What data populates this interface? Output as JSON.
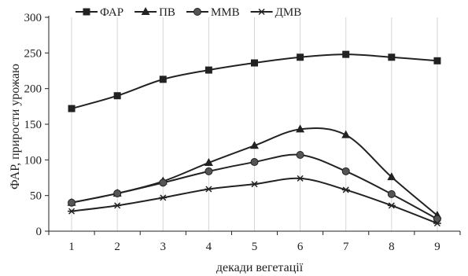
{
  "chart_data": {
    "type": "line",
    "title": "",
    "xlabel": "декади вегетації",
    "ylabel": "ФАР, прирости урожаю",
    "x": [
      1,
      2,
      3,
      4,
      5,
      6,
      7,
      8,
      9
    ],
    "x_tick_labels": [
      "1",
      "2",
      "3",
      "4",
      "5",
      "6",
      "7",
      "8",
      "9"
    ],
    "y_tick_labels": [
      "0",
      "50",
      "100",
      "150",
      "200",
      "250",
      "300"
    ],
    "ylim": [
      0,
      300
    ],
    "grid": "vertical gridlines at each x category",
    "legend_position": "top-left",
    "series": [
      {
        "name": "ФАР",
        "marker": "square",
        "values": [
          172,
          190,
          213,
          226,
          236,
          244,
          248,
          244,
          239
        ]
      },
      {
        "name": "ПВ",
        "marker": "triangle",
        "values": [
          40,
          53,
          70,
          96,
          120,
          143,
          135,
          76,
          22
        ]
      },
      {
        "name": "ММВ",
        "marker": "circle",
        "values": [
          40,
          53,
          68,
          84,
          97,
          107,
          84,
          52,
          17
        ]
      },
      {
        "name": "ДМВ",
        "marker": "asterisk",
        "values": [
          28,
          36,
          47,
          59,
          66,
          74,
          58,
          36,
          11
        ]
      }
    ],
    "colors": {
      "series": "#222222",
      "grid": "#d6d6d6"
    }
  }
}
